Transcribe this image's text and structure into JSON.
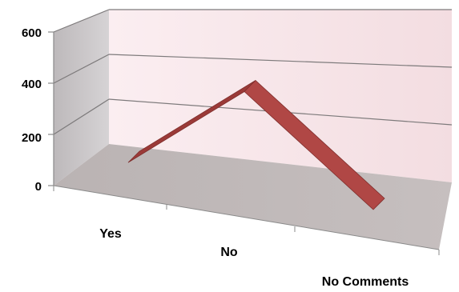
{
  "chart_data": {
    "type": "line",
    "style": "3d-ribbon",
    "categories": [
      "Yes",
      "No",
      "No Comments"
    ],
    "series": [
      {
        "values": [
          35,
          550,
          0
        ]
      }
    ],
    "yticks": [
      "0",
      "200",
      "400",
      "600"
    ],
    "ylim": [
      0,
      600
    ],
    "grid": true,
    "legend": "none",
    "title": "",
    "xlabel": "",
    "ylabel": ""
  },
  "colors": {
    "ribbon_top": "#b04745",
    "ribbon_front": "#9b3a38",
    "back_wall": "#f7e6e9",
    "side_wall": "#c8c4c6",
    "floor": "#c2bbbb",
    "grid": "#7d7a7b"
  }
}
